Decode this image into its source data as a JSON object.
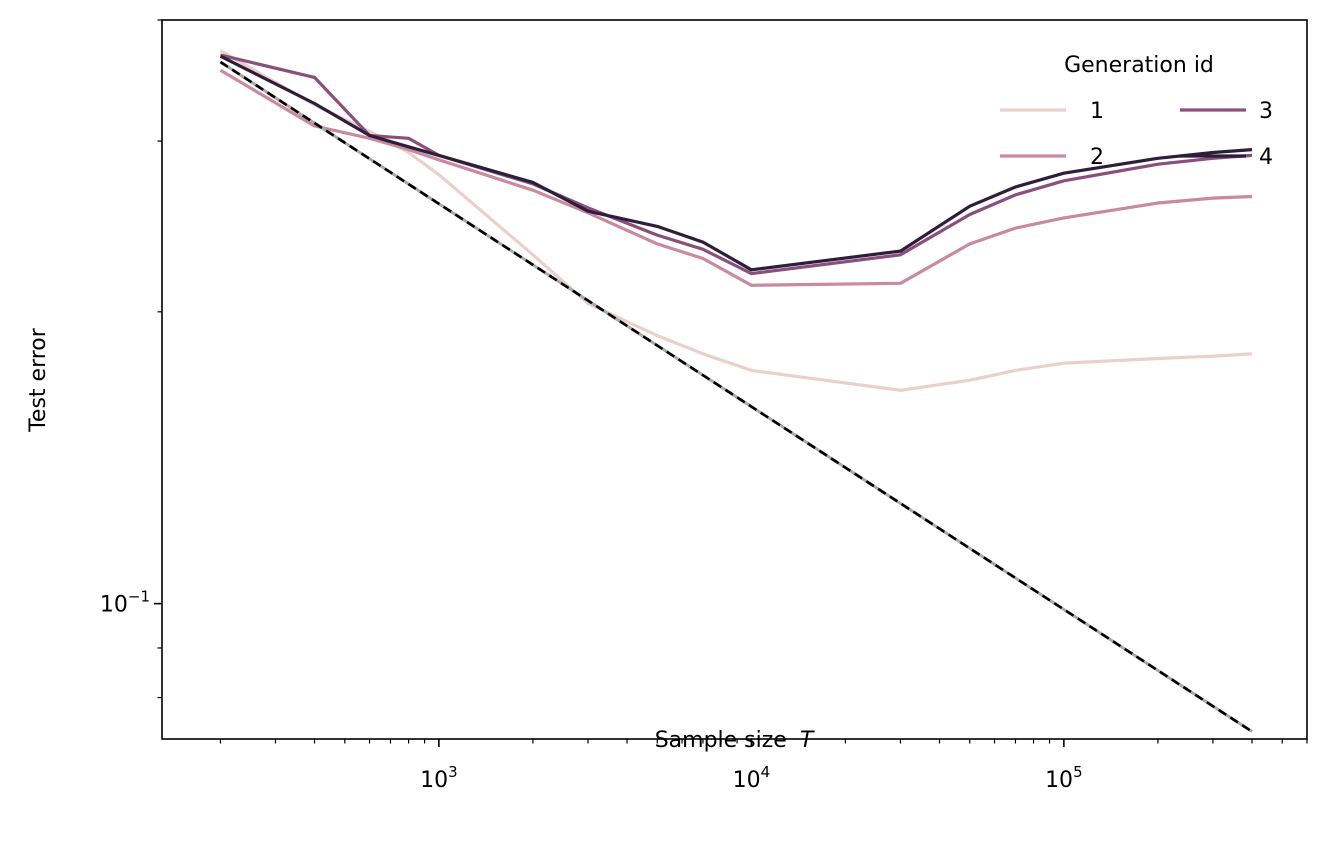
{
  "chart_data": {
    "type": "line",
    "title": "",
    "xlabel": "Sample size",
    "xlabel_var": "T",
    "ylabel": "Test error",
    "xscale": "log",
    "yscale": "log",
    "xlim": [
      130,
      600000
    ],
    "ylim": [
      0.0725,
      0.4
    ],
    "x_major_ticks": [
      {
        "value": 1000,
        "base": "10",
        "exp": "3"
      },
      {
        "value": 10000,
        "base": "10",
        "exp": "4"
      },
      {
        "value": 100000,
        "base": "10",
        "exp": "5"
      }
    ],
    "y_major_ticks": [
      {
        "value": 0.1,
        "base": "10",
        "exp": "−1"
      }
    ],
    "legend": {
      "title": "Generation id",
      "position": "top-right",
      "ncol": 2
    },
    "x": [
      200,
      400,
      600,
      800,
      1000,
      2000,
      3000,
      5000,
      7000,
      10000,
      30000,
      50000,
      70000,
      100000,
      200000,
      300000,
      400000
    ],
    "series": [
      {
        "name": "1",
        "color": "#ead0c9",
        "values": [
          0.372,
          0.327,
          0.307,
          0.292,
          0.277,
          0.229,
          0.204,
          0.189,
          0.181,
          0.174,
          0.166,
          0.17,
          0.174,
          0.177,
          0.179,
          0.18,
          0.181
        ]
      },
      {
        "name": "2",
        "color": "#c98a9e",
        "values": [
          0.355,
          0.311,
          0.302,
          0.294,
          0.287,
          0.267,
          0.253,
          0.235,
          0.227,
          0.213,
          0.214,
          0.235,
          0.244,
          0.25,
          0.259,
          0.262,
          0.263
        ]
      },
      {
        "name": "3",
        "color": "#8a4f7d",
        "values": [
          0.368,
          0.349,
          0.304,
          0.302,
          0.29,
          0.271,
          0.256,
          0.24,
          0.232,
          0.219,
          0.229,
          0.252,
          0.264,
          0.273,
          0.284,
          0.288,
          0.29
        ]
      },
      {
        "name": "4",
        "color": "#2e1e3b",
        "values": [
          0.367,
          0.328,
          0.304,
          0.296,
          0.29,
          0.272,
          0.254,
          0.245,
          0.236,
          0.221,
          0.231,
          0.257,
          0.269,
          0.278,
          0.288,
          0.292,
          0.294
        ]
      }
    ],
    "reference_line": {
      "name": "reference",
      "x": [
        200,
        400000
      ],
      "y": [
        0.362,
        0.0738
      ],
      "style": "dashed",
      "color": "#000000"
    }
  }
}
